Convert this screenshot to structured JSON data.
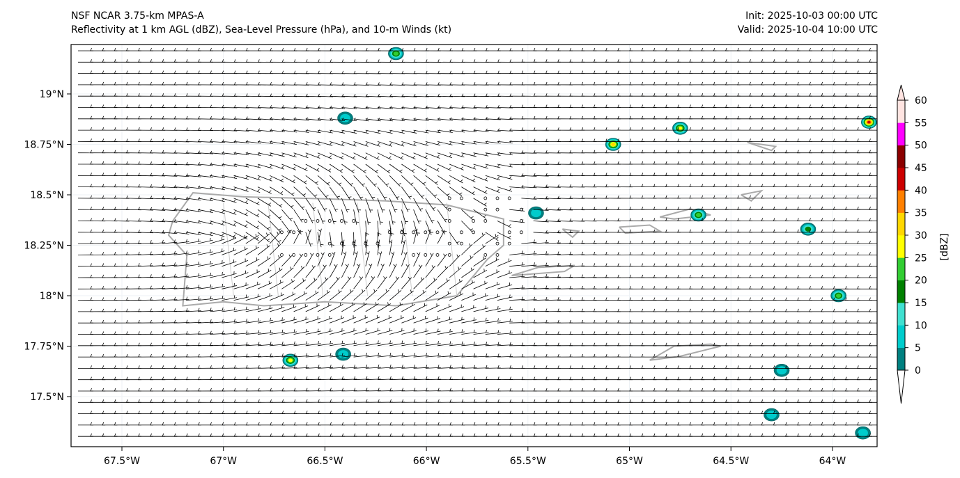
{
  "header": {
    "title_line1": "NSF NCAR 3.75-km MPAS-A",
    "title_line2": "Reflectivity at 1 km AGL (dBZ), Sea-Level Pressure (hPa), and 10-m Winds (kt)",
    "init": "Init: 2025-10-03 00:00 UTC",
    "valid": "Valid: 2025-10-04 10:00 UTC"
  },
  "axes": {
    "lon_ticks": [
      {
        "v": -67.5,
        "label": "67.5°W"
      },
      {
        "v": -67,
        "label": "67°W"
      },
      {
        "v": -66.5,
        "label": "66.5°W"
      },
      {
        "v": -66,
        "label": "66°W"
      },
      {
        "v": -65.5,
        "label": "65.5°W"
      },
      {
        "v": -65,
        "label": "65°W"
      },
      {
        "v": -64.5,
        "label": "64.5°W"
      },
      {
        "v": -64,
        "label": "64°W"
      }
    ],
    "lat_ticks": [
      {
        "v": 19,
        "label": "19°N"
      },
      {
        "v": 18.75,
        "label": "18.75°N"
      },
      {
        "v": 18.5,
        "label": "18.5°N"
      },
      {
        "v": 18.25,
        "label": "18.25°N"
      },
      {
        "v": 18,
        "label": "18°N"
      },
      {
        "v": 17.75,
        "label": "17.75°N"
      },
      {
        "v": 17.5,
        "label": "17.5°N"
      }
    ]
  },
  "colorbar": {
    "label": "[dBZ]",
    "levels": [
      "0",
      "5",
      "10",
      "15",
      "20",
      "25",
      "30",
      "35",
      "40",
      "45",
      "50",
      "55",
      "60"
    ],
    "colors": [
      "#008080",
      "#00cccc",
      "#40e0d0",
      "#008000",
      "#32cd32",
      "#ffff00",
      "#ffd700",
      "#ff8000",
      "#cc0000",
      "#8b0000",
      "#ff00ff",
      "#ffe4e1"
    ]
  },
  "cells": [
    {
      "lon": -66.15,
      "lat": 19.2,
      "max": 25
    },
    {
      "lon": -66.4,
      "lat": 18.88,
      "max": 10
    },
    {
      "lon": -65.08,
      "lat": 18.75,
      "max": 35
    },
    {
      "lon": -64.75,
      "lat": 18.83,
      "max": 30
    },
    {
      "lon": -63.82,
      "lat": 18.86,
      "max": 45
    },
    {
      "lon": -65.46,
      "lat": 18.41,
      "max": 10
    },
    {
      "lon": -64.66,
      "lat": 18.4,
      "max": 25
    },
    {
      "lon": -64.12,
      "lat": 18.33,
      "max": 20
    },
    {
      "lon": -63.97,
      "lat": 18.0,
      "max": 25
    },
    {
      "lon": -66.67,
      "lat": 17.68,
      "max": 30
    },
    {
      "lon": -66.41,
      "lat": 17.71,
      "max": 10
    },
    {
      "lon": -64.25,
      "lat": 17.63,
      "max": 10
    },
    {
      "lon": -64.3,
      "lat": 17.41,
      "max": 10
    },
    {
      "lon": -63.85,
      "lat": 17.32,
      "max": 10
    }
  ]
}
